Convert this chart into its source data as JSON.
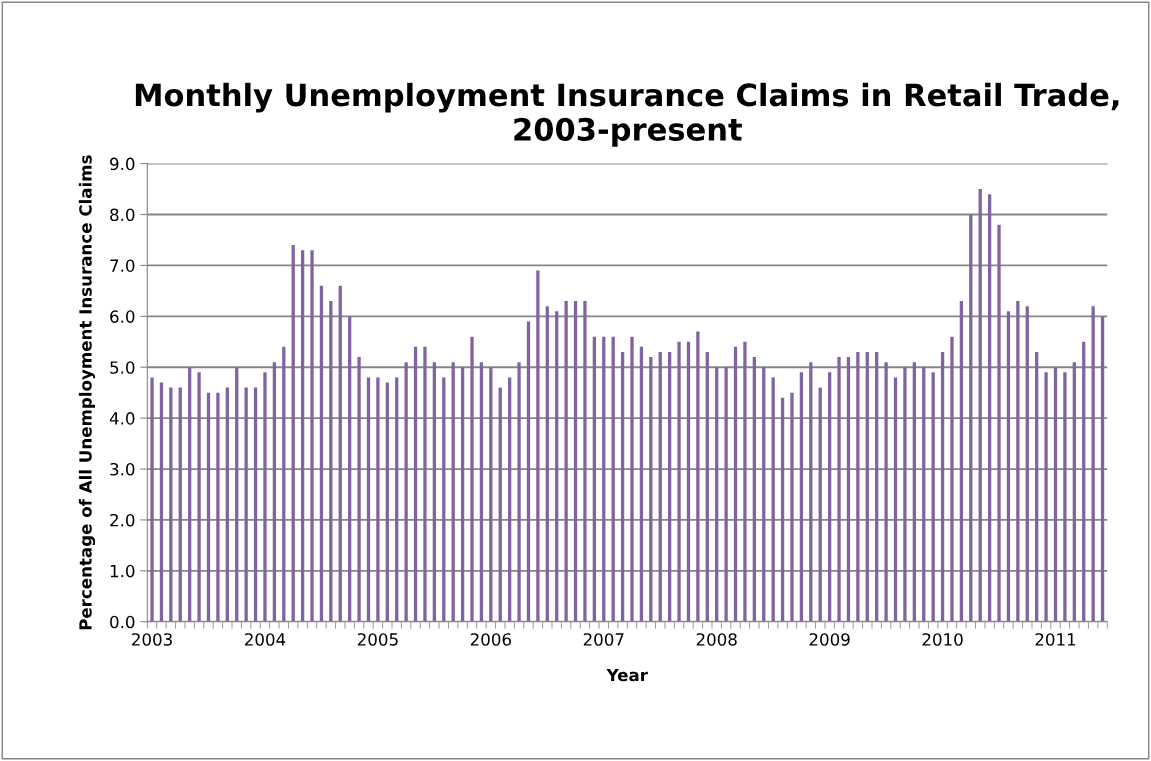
{
  "chart_data": {
    "type": "bar",
    "title": "Monthly Unemployment Insurance Claims in Retail Trade, 2003-present",
    "xlabel": "Year",
    "ylabel": "Percentage of All Unemployment Insurance Claims",
    "categories": [
      "2003",
      null,
      null,
      null,
      null,
      null,
      null,
      null,
      null,
      null,
      null,
      null,
      "2004",
      null,
      null,
      null,
      null,
      null,
      null,
      null,
      null,
      null,
      null,
      null,
      "2005",
      null,
      null,
      null,
      null,
      null,
      null,
      null,
      null,
      null,
      null,
      null,
      "2006",
      null,
      null,
      null,
      null,
      null,
      null,
      null,
      null,
      null,
      null,
      null,
      "2007",
      null,
      null,
      null,
      null,
      null,
      null,
      null,
      null,
      null,
      null,
      null,
      "2008",
      null,
      null,
      null,
      null,
      null,
      null,
      null,
      null,
      null,
      null,
      null,
      "2009",
      null,
      null,
      null,
      null,
      null,
      null,
      null,
      null,
      null,
      null,
      null,
      "2010",
      null,
      null,
      null,
      null,
      null,
      null,
      null,
      null,
      null,
      null,
      null,
      "2011",
      null,
      null,
      null,
      null,
      null
    ],
    "values": [
      4.8,
      4.7,
      4.6,
      4.6,
      5.0,
      4.9,
      4.5,
      4.5,
      4.6,
      5.0,
      4.6,
      4.6,
      4.9,
      5.1,
      5.4,
      7.4,
      7.3,
      7.3,
      6.6,
      6.3,
      6.6,
      6.0,
      5.2,
      4.8,
      4.8,
      4.7,
      4.8,
      5.1,
      5.4,
      5.4,
      5.1,
      4.8,
      5.1,
      5.0,
      5.6,
      5.1,
      5.0,
      4.6,
      4.8,
      5.1,
      5.9,
      6.9,
      6.2,
      6.1,
      6.3,
      6.3,
      6.3,
      5.6,
      5.6,
      5.6,
      5.3,
      5.6,
      5.4,
      5.2,
      5.3,
      5.3,
      5.5,
      5.5,
      5.7,
      5.3,
      5.0,
      5.0,
      5.4,
      5.5,
      5.2,
      5.0,
      4.8,
      4.4,
      4.5,
      4.9,
      5.1,
      4.6,
      4.9,
      5.2,
      5.2,
      5.3,
      5.3,
      5.3,
      5.1,
      4.8,
      5.0,
      5.1,
      5.0,
      4.9,
      5.3,
      5.6,
      6.3,
      8.0,
      8.5,
      8.4,
      7.8,
      6.1,
      6.3,
      6.2,
      5.3,
      4.9,
      5.0,
      4.9,
      5.1,
      5.5,
      6.2,
      6.0
    ],
    "color": "#8064a2",
    "ylim": [
      0,
      9
    ],
    "yticks": [
      {
        "value": 0,
        "label": "0.0"
      },
      {
        "value": 1,
        "label": "1.0"
      },
      {
        "value": 2,
        "label": "2.0"
      },
      {
        "value": 3,
        "label": "3.0"
      },
      {
        "value": 4,
        "label": "4.0"
      },
      {
        "value": 5,
        "label": "5.0"
      },
      {
        "value": 6,
        "label": "6.0"
      },
      {
        "value": 7,
        "label": "7.0"
      },
      {
        "value": 8,
        "label": "8.0"
      },
      {
        "value": 9,
        "label": "9.0"
      }
    ],
    "grid": "y",
    "legend": false
  }
}
